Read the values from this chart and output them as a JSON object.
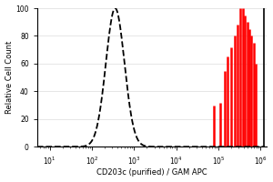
{
  "title": "",
  "xlabel": "CD203c (purified) / GAM APC",
  "ylabel": "Relative Cell Count",
  "ylim": [
    0,
    100
  ],
  "yticks": [
    0,
    20,
    40,
    60,
    80,
    100
  ],
  "background_color": "#ffffff",
  "plot_bg_color": "#ffffff",
  "dashed_peak_log": 2.55,
  "dashed_sigma": 0.22,
  "dashed_color": "black",
  "red_color": "#ff0000",
  "red_bars": {
    "centers": [
      4.88,
      5.05,
      5.15,
      5.22,
      5.3,
      5.38,
      5.46,
      5.52,
      5.58,
      5.63,
      5.68,
      5.73,
      5.78,
      5.83,
      5.88
    ],
    "heights": [
      30,
      32,
      55,
      65,
      72,
      80,
      88,
      100,
      100,
      95,
      90,
      85,
      80,
      75,
      60
    ]
  }
}
